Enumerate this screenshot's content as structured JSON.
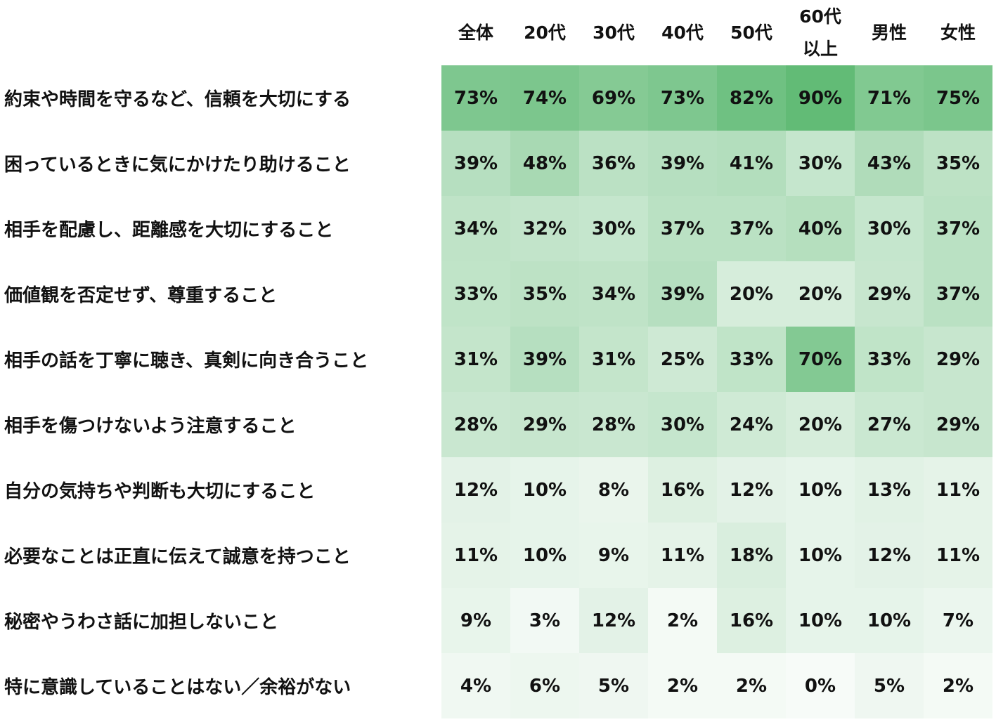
{
  "chart_data": {
    "type": "heatmap",
    "columns": [
      "全体",
      "20代",
      "30代",
      "40代",
      "50代",
      "60代\n以上",
      "男性",
      "女性"
    ],
    "rows": [
      {
        "label": "約束や時間を守るなど、信頼を大切にする",
        "values": [
          73,
          74,
          69,
          73,
          82,
          90,
          71,
          75
        ]
      },
      {
        "label": "困っているときに気にかけたり助けること",
        "values": [
          39,
          48,
          36,
          39,
          41,
          30,
          43,
          35
        ]
      },
      {
        "label": "相手を配慮し、距離感を大切にすること",
        "values": [
          34,
          32,
          30,
          37,
          37,
          40,
          30,
          37
        ]
      },
      {
        "label": "価値観を否定せず、尊重すること",
        "values": [
          33,
          35,
          34,
          39,
          20,
          20,
          29,
          37
        ]
      },
      {
        "label": "相手の話を丁寧に聴き、真剣に向き合うこと",
        "values": [
          31,
          39,
          31,
          25,
          33,
          70,
          33,
          29
        ]
      },
      {
        "label": "相手を傷つけないよう注意すること",
        "values": [
          28,
          29,
          28,
          30,
          24,
          20,
          27,
          29
        ]
      },
      {
        "label": "自分の気持ちや判断も大切にすること",
        "values": [
          12,
          10,
          8,
          16,
          12,
          10,
          13,
          11
        ]
      },
      {
        "label": "必要なことは正直に伝えて誠意を持つこと",
        "values": [
          11,
          10,
          9,
          11,
          18,
          10,
          12,
          11
        ]
      },
      {
        "label": "秘密やうわさ話に加担しないこと",
        "values": [
          9,
          3,
          12,
          2,
          16,
          10,
          10,
          7
        ]
      },
      {
        "label": "特に意識していることはない／余裕がない",
        "values": [
          4,
          6,
          5,
          2,
          2,
          0,
          5,
          2
        ]
      }
    ],
    "value_suffix": "%",
    "color_scale": {
      "low": "#f7fbf8",
      "high": "#62bb76",
      "min": 0,
      "max": 90
    }
  }
}
